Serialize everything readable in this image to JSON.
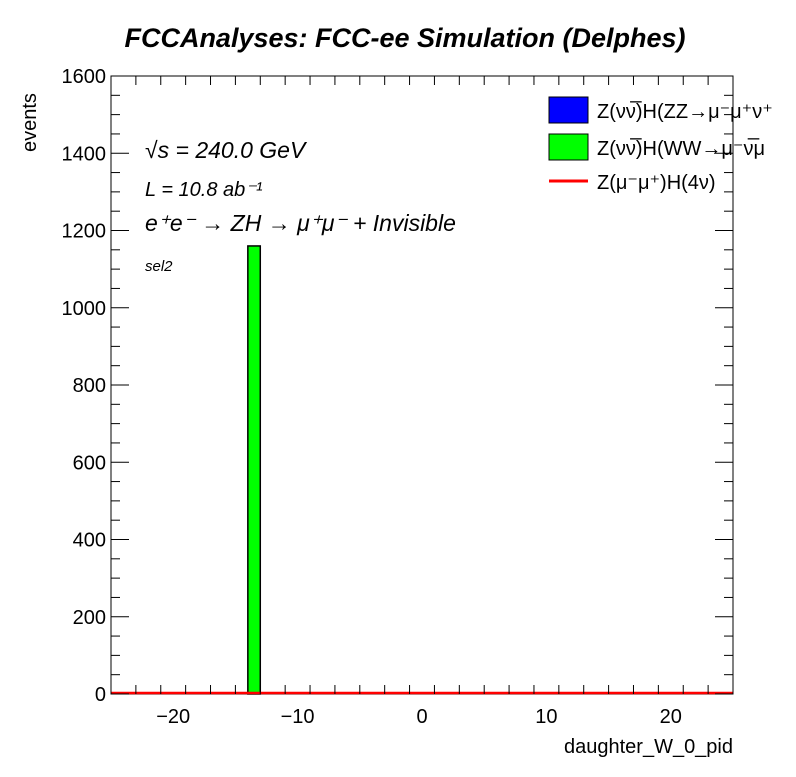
{
  "chart_data": {
    "type": "bar",
    "title": "FCCAnalyses: FCC-ee Simulation (Delphes)",
    "xlabel": "daughter_W_0_pid",
    "ylabel": "events",
    "xlim": [
      -25,
      25
    ],
    "ylim": [
      0,
      1600
    ],
    "x_ticks": [
      -20,
      -10,
      0,
      10,
      20
    ],
    "x_tick_labels": [
      "−20",
      "−10",
      "0",
      "10",
      "20"
    ],
    "y_ticks": [
      0,
      200,
      400,
      600,
      800,
      1000,
      1200,
      1400,
      1600
    ],
    "annotations": {
      "sqrt_s": "√s = 240.0 GeV",
      "lumi": "L = 10.8 ab⁻¹",
      "process": "e⁺e⁻ → ZH → μ⁺μ⁻ + Invisible",
      "selection": "sel2"
    },
    "legend_position": "top-right",
    "series": [
      {
        "name": "Z(νν̅)H(ZZ→μ⁻μ⁺ν⁺",
        "color": "#0000ff",
        "style": "fill",
        "bins": []
      },
      {
        "name": "Z(νν̅)H(WW→μ⁻ν̅μ",
        "color": "#00ff00",
        "style": "fill",
        "bins": [
          {
            "x0": -14,
            "x1": -13,
            "value": 1160
          }
        ]
      },
      {
        "name": "Z(μ⁻μ⁺)H(4ν)",
        "color": "#ff0000",
        "style": "line",
        "bins": []
      }
    ]
  }
}
